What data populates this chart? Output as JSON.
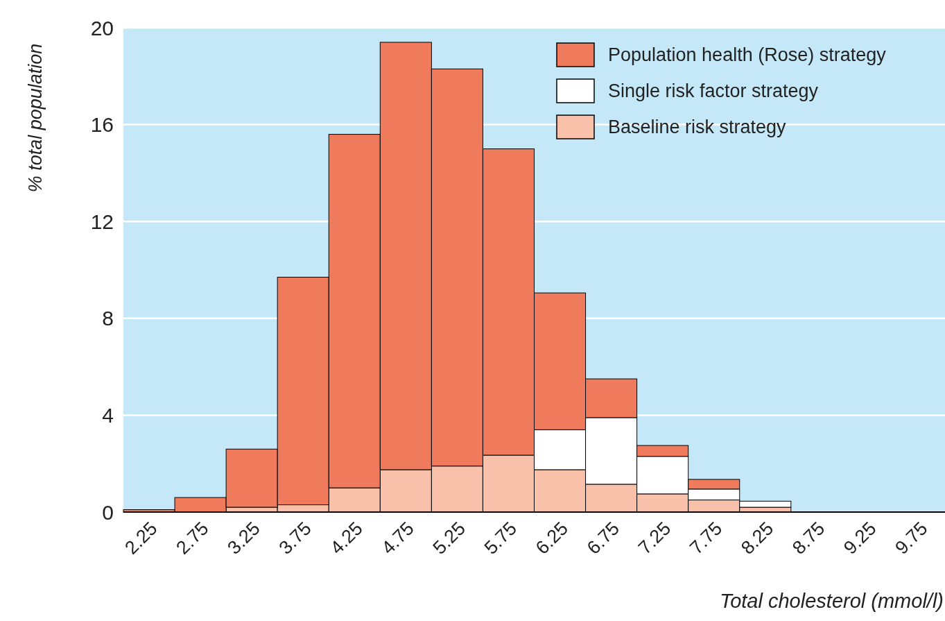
{
  "chart_data": {
    "type": "bar",
    "stacked": true,
    "xlabel": "Total cholesterol (mmol/l)",
    "ylabel": "% total population",
    "categories": [
      "2.25",
      "2.75",
      "3.25",
      "3.75",
      "4.25",
      "4.75",
      "5.25",
      "5.75",
      "6.25",
      "6.75",
      "7.25",
      "7.75",
      "8.25",
      "8.75",
      "9.25",
      "9.75"
    ],
    "series": [
      {
        "name": "Baseline risk strategy",
        "color": "#f9c0aa",
        "values": [
          0,
          0,
          0.2,
          0.3,
          1.0,
          1.75,
          1.9,
          2.35,
          1.75,
          1.15,
          0.75,
          0.5,
          0.2,
          0,
          0,
          0
        ]
      },
      {
        "name": "Single risk factor strategy",
        "color": "#ffffff",
        "values": [
          0,
          0,
          0,
          0,
          0,
          0,
          0,
          0,
          1.65,
          2.75,
          1.55,
          0.45,
          0.25,
          0,
          0,
          0
        ]
      },
      {
        "name": "Population health (Rose) strategy",
        "color": "#ef7a5c",
        "values": [
          0.1,
          0.6,
          2.4,
          9.4,
          14.6,
          17.65,
          16.4,
          12.65,
          5.65,
          1.6,
          0.45,
          0.4,
          0,
          null,
          null,
          0
        ]
      }
    ],
    "ylim": [
      0,
      20
    ],
    "yticks": [
      0,
      4,
      8,
      12,
      16,
      20
    ],
    "grid": "y",
    "legend": "top right"
  }
}
